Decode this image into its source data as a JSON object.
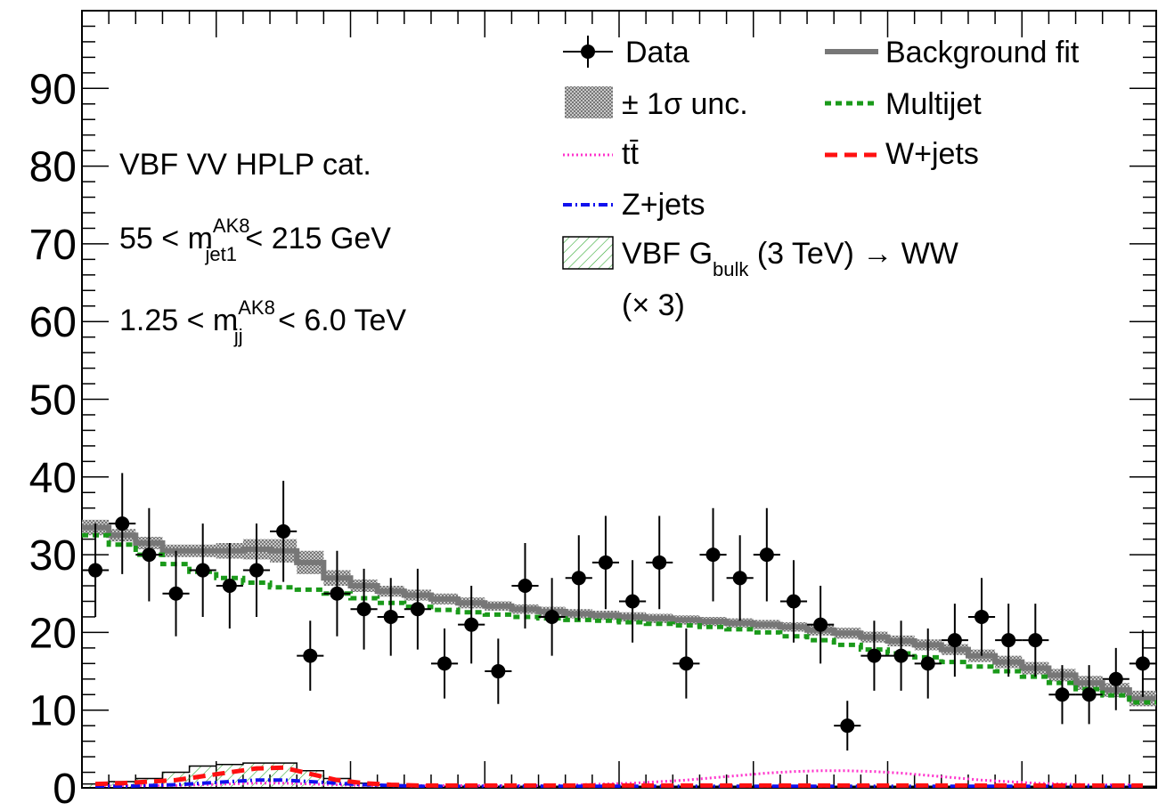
{
  "chart_data": {
    "type": "line",
    "title": "",
    "xlabel": "",
    "ylabel": "",
    "xlim": [
      0,
      40
    ],
    "ylim": [
      0,
      100
    ],
    "y_ticks": [
      "0",
      "10",
      "20",
      "30",
      "40",
      "50",
      "60",
      "70",
      "80",
      "90"
    ],
    "annotations": [
      {
        "text": "VBF VV HPLP cat."
      },
      {
        "lead": "55 < m",
        "sup": "AK8",
        "sub": "jet1",
        "tail": " < 215 GeV"
      },
      {
        "lead": "1.25 < m",
        "sup": "AK8",
        "sub": "jj",
        "tail": " < 6.0 TeV"
      }
    ],
    "legend": {
      "position": "top-right",
      "entries": [
        {
          "key": "data",
          "label": "Data"
        },
        {
          "key": "bkg",
          "label": "Background fit"
        },
        {
          "key": "unc",
          "label": "± 1σ unc."
        },
        {
          "key": "multijet",
          "label": "Multijet"
        },
        {
          "key": "ttbar",
          "label": "tt̄"
        },
        {
          "key": "wjets",
          "label": "W+jets"
        },
        {
          "key": "zjets",
          "label": "Z+jets"
        },
        {
          "key": "signal",
          "label": "VBF G",
          "sub": "bulk",
          "tail": " (3 TeV) → WW",
          "line2": "(× 3)"
        }
      ]
    },
    "colors": {
      "data": "#000000",
      "bkg": "#777777",
      "unc": "#999999",
      "multijet": "#1a9a1a",
      "ttbar": "#ff33cc",
      "wjets": "#ff1111",
      "zjets": "#1111ee",
      "signal": "#33aa33"
    },
    "data_points": [
      {
        "x": 0.5,
        "y": 28,
        "err": 6
      },
      {
        "x": 1.5,
        "y": 34,
        "err": 6.5
      },
      {
        "x": 2.5,
        "y": 30,
        "err": 6
      },
      {
        "x": 3.5,
        "y": 25,
        "err": 5.5
      },
      {
        "x": 4.5,
        "y": 28,
        "err": 6
      },
      {
        "x": 5.5,
        "y": 26,
        "err": 5.5
      },
      {
        "x": 6.5,
        "y": 28,
        "err": 6
      },
      {
        "x": 7.5,
        "y": 33,
        "err": 6.5
      },
      {
        "x": 8.5,
        "y": 17,
        "err": 4.5
      },
      {
        "x": 9.5,
        "y": 25,
        "err": 5.5
      },
      {
        "x": 10.5,
        "y": 23,
        "err": 5.2
      },
      {
        "x": 11.5,
        "y": 22,
        "err": 5
      },
      {
        "x": 12.5,
        "y": 23,
        "err": 5.2
      },
      {
        "x": 13.5,
        "y": 16,
        "err": 4.5
      },
      {
        "x": 14.5,
        "y": 21,
        "err": 5
      },
      {
        "x": 15.5,
        "y": 15,
        "err": 4.2
      },
      {
        "x": 16.5,
        "y": 26,
        "err": 5.5
      },
      {
        "x": 17.5,
        "y": 22,
        "err": 5
      },
      {
        "x": 18.5,
        "y": 27,
        "err": 5.5
      },
      {
        "x": 19.5,
        "y": 29,
        "err": 6
      },
      {
        "x": 20.5,
        "y": 24,
        "err": 5.3
      },
      {
        "x": 21.5,
        "y": 29,
        "err": 6
      },
      {
        "x": 22.5,
        "y": 16,
        "err": 4.5
      },
      {
        "x": 23.5,
        "y": 30,
        "err": 6
      },
      {
        "x": 24.5,
        "y": 27,
        "err": 5.5
      },
      {
        "x": 25.5,
        "y": 30,
        "err": 6
      },
      {
        "x": 26.5,
        "y": 24,
        "err": 5.3
      },
      {
        "x": 27.5,
        "y": 21,
        "err": 5
      },
      {
        "x": 28.5,
        "y": 8,
        "err": 3.2
      },
      {
        "x": 29.5,
        "y": 17,
        "err": 4.5
      },
      {
        "x": 30.5,
        "y": 17,
        "err": 4.5
      },
      {
        "x": 31.5,
        "y": 16,
        "err": 4.5
      },
      {
        "x": 32.5,
        "y": 19,
        "err": 4.7
      },
      {
        "x": 33.5,
        "y": 22,
        "err": 5
      },
      {
        "x": 34.5,
        "y": 19,
        "err": 4.7
      },
      {
        "x": 35.5,
        "y": 19,
        "err": 4.7
      },
      {
        "x": 36.5,
        "y": 12,
        "err": 3.8
      },
      {
        "x": 37.5,
        "y": 12,
        "err": 3.8
      },
      {
        "x": 38.5,
        "y": 14,
        "err": 4
      },
      {
        "x": 39.5,
        "y": 16,
        "err": 4.3
      }
    ],
    "series": [
      {
        "key": "bkg",
        "x": [
          0,
          1,
          2,
          3,
          4,
          5,
          6,
          7,
          8,
          9,
          10,
          11,
          12,
          13,
          14,
          15,
          16,
          17,
          18,
          19,
          20,
          21,
          22,
          23,
          24,
          25,
          26,
          27,
          28,
          29,
          30,
          31,
          32,
          33,
          34,
          35,
          36,
          37,
          38,
          39
        ],
        "values": [
          33.5,
          32.5,
          31.5,
          30.5,
          30.5,
          30.5,
          30.7,
          30.5,
          29,
          27,
          26,
          25.3,
          24.8,
          24.3,
          23.8,
          23.4,
          23,
          22.7,
          22.4,
          22.2,
          22,
          21.8,
          21.6,
          21.4,
          21.2,
          21,
          20.7,
          20.3,
          19.9,
          19.4,
          18.9,
          18.4,
          17.8,
          17,
          16.2,
          15.4,
          14.5,
          13.5,
          12.6,
          11.5
        ]
      },
      {
        "key": "unc_hi",
        "values": [
          34.5,
          33.3,
          32.3,
          31.3,
          31.3,
          31.5,
          32,
          32,
          30.5,
          28,
          26.8,
          26,
          25.5,
          25,
          24.5,
          24,
          23.6,
          23.3,
          23,
          22.8,
          22.6,
          22.4,
          22.2,
          22,
          21.8,
          21.6,
          21.3,
          21,
          20.6,
          20.1,
          19.6,
          19.1,
          18.5,
          17.8,
          17,
          16.2,
          15.3,
          14.4,
          13.5,
          12.5
        ]
      },
      {
        "key": "unc_lo",
        "values": [
          32.5,
          31.7,
          30.7,
          29.7,
          29.7,
          29.5,
          29.4,
          29,
          27.5,
          26,
          25.2,
          24.6,
          24.1,
          23.6,
          23.1,
          22.8,
          22.4,
          22.1,
          21.8,
          21.6,
          21.4,
          21.2,
          21,
          20.8,
          20.6,
          20.4,
          20.1,
          19.6,
          19.2,
          18.7,
          18.2,
          17.7,
          17.1,
          16.2,
          15.4,
          14.6,
          13.7,
          12.6,
          11.7,
          10.5
        ]
      },
      {
        "key": "multijet",
        "x": [
          0,
          1,
          2,
          3,
          4,
          5,
          6,
          7,
          8,
          9,
          10,
          11,
          12,
          13,
          14,
          15,
          16,
          17,
          18,
          19,
          20,
          21,
          22,
          23,
          24,
          25,
          26,
          27,
          28,
          29,
          30,
          31,
          32,
          33,
          34,
          35,
          36,
          37,
          38,
          39
        ],
        "values": [
          32.5,
          31.3,
          30,
          28.8,
          27.8,
          27,
          26.4,
          25.8,
          25.5,
          25,
          24.4,
          23.8,
          23.3,
          22.9,
          22.6,
          22.3,
          22,
          21.8,
          21.6,
          21.5,
          21.3,
          21.1,
          20.9,
          20.7,
          20.4,
          20,
          19.5,
          19,
          18.4,
          17.8,
          17.3,
          16.8,
          16.2,
          15.6,
          15,
          14.3,
          13.5,
          12.7,
          11.9,
          11
        ]
      },
      {
        "key": "ttbar",
        "values": [
          0.3,
          0.3,
          0.3,
          0.3,
          0.4,
          0.5,
          0.6,
          0.6,
          0.5,
          0.4,
          0.3,
          0.3,
          0.3,
          0.3,
          0.3,
          0.3,
          0.3,
          0.3,
          0.4,
          0.5,
          0.6,
          0.8,
          1,
          1.3,
          1.6,
          1.9,
          2.1,
          2.2,
          2.2,
          2.1,
          1.9,
          1.6,
          1.3,
          1,
          0.8,
          0.6,
          0.5,
          0.4,
          0.4,
          0.4
        ]
      },
      {
        "key": "wjets",
        "values": [
          0.5,
          0.6,
          0.8,
          1,
          1.5,
          2,
          2.5,
          2.6,
          1.8,
          1,
          0.6,
          0.4,
          0.3,
          0.3,
          0.3,
          0.3,
          0.3,
          0.3,
          0.3,
          0.3,
          0.3,
          0.3,
          0.3,
          0.3,
          0.3,
          0.3,
          0.3,
          0.3,
          0.3,
          0.3,
          0.3,
          0.3,
          0.3,
          0.3,
          0.3,
          0.3,
          0.3,
          0.3,
          0.3,
          0.3
        ]
      },
      {
        "key": "zjets",
        "values": [
          0.2,
          0.2,
          0.3,
          0.4,
          0.6,
          0.8,
          1,
          1,
          0.8,
          0.6,
          0.4,
          0.3,
          0.2,
          0.2,
          0.2,
          0.2,
          0.2,
          0.2,
          0.2,
          0.2,
          0.2,
          0.2,
          0.2,
          0.2,
          0.2,
          0.2,
          0.2,
          0.2,
          0.2,
          0.2,
          0.2,
          0.2,
          0.2,
          0.2,
          0.2,
          0.2,
          0.2,
          0.2,
          0.2,
          0.2
        ]
      },
      {
        "key": "signal",
        "values": [
          0.5,
          0.8,
          1.2,
          2,
          2.8,
          3,
          3.2,
          3.2,
          2.2,
          1.2,
          0.6,
          0.4,
          0.2,
          0.2,
          0.2,
          0.2,
          0.2,
          0.2,
          0.2,
          0.2,
          0.2,
          0.2,
          0.2,
          0.2,
          0.2,
          0.2,
          0.2,
          0.2,
          0.2,
          0.2,
          0.2,
          0.2,
          0.2,
          0.2,
          0.2,
          0.2,
          0.2,
          0.2,
          0.2,
          0.2
        ]
      }
    ]
  }
}
